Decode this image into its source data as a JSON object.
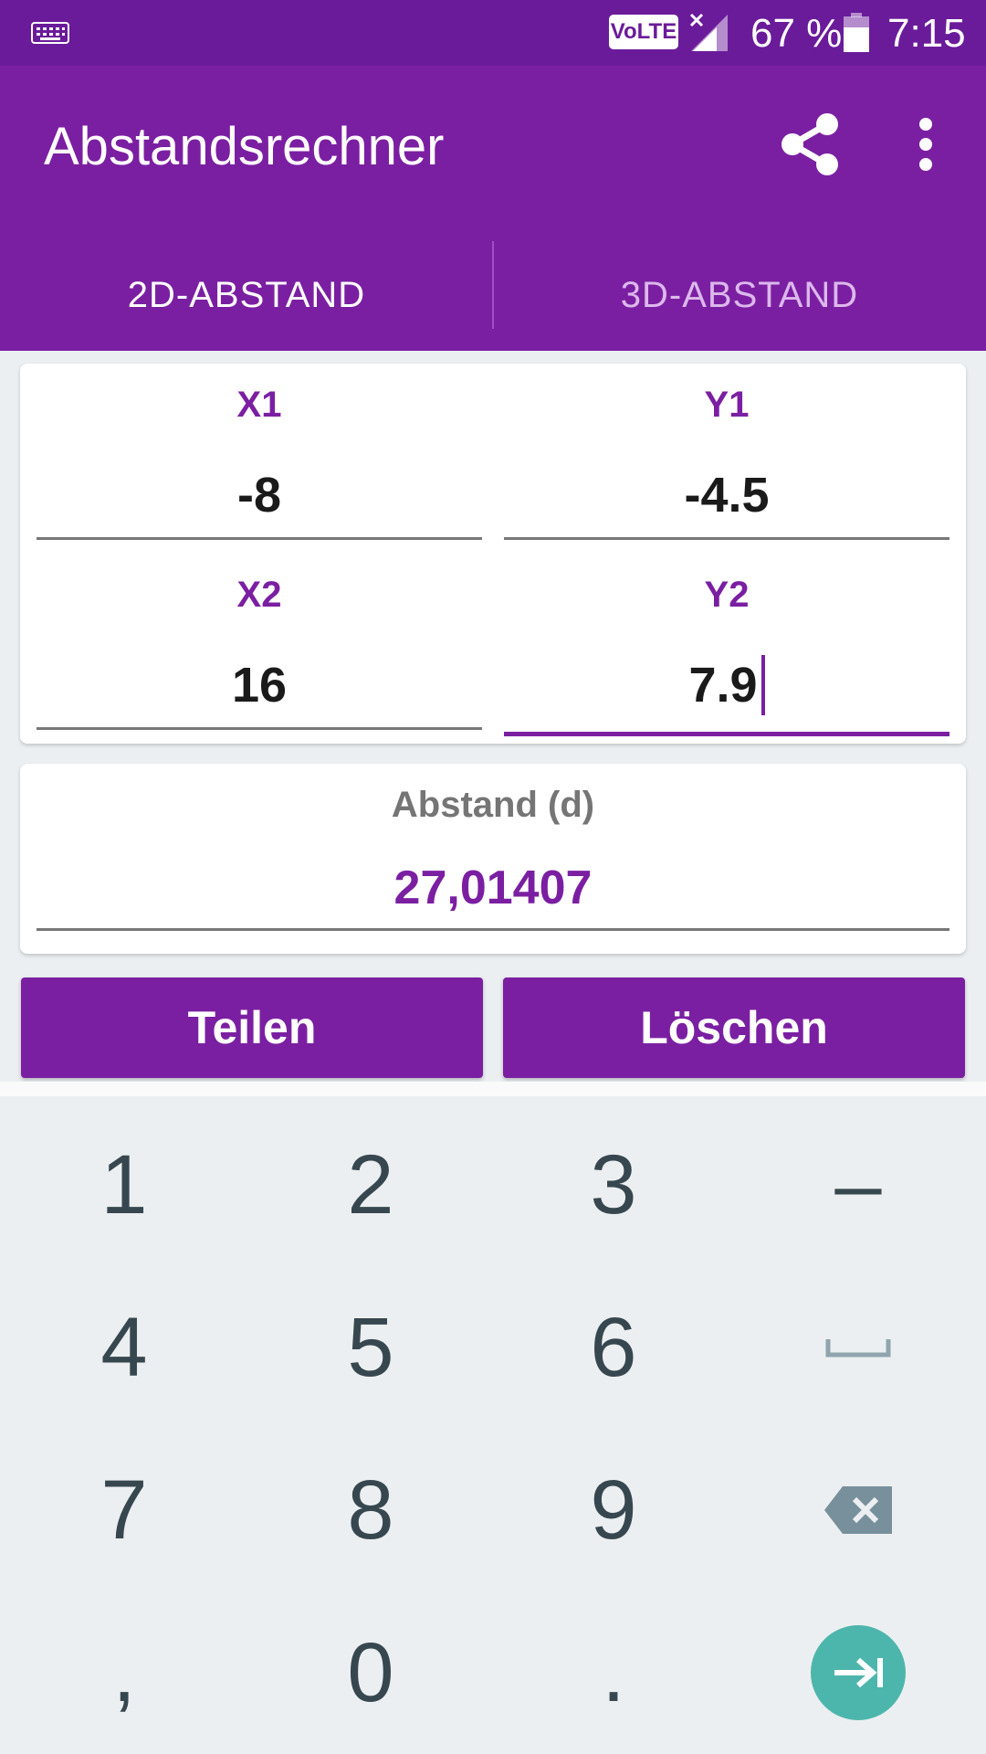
{
  "status_bar": {
    "network_badge": "VoLTE",
    "battery_text": "67 %",
    "time": "7:15"
  },
  "app_bar": {
    "title": "Abstandsrechner",
    "share_icon": "share-icon",
    "more_icon": "more-vert-icon"
  },
  "tabs": [
    {
      "label": "2D-ABSTAND",
      "selected": true
    },
    {
      "label": "3D-ABSTAND",
      "selected": false
    }
  ],
  "inputs": {
    "x1": {
      "label": "X1",
      "value": "-8"
    },
    "y1": {
      "label": "Y1",
      "value": "-4.5"
    },
    "x2": {
      "label": "X2",
      "value": "16"
    },
    "y2": {
      "label": "Y2",
      "value": "7.9"
    }
  },
  "result": {
    "label": "Abstand (d)",
    "value": "27,01407"
  },
  "buttons": {
    "share_label": "Teilen",
    "clear_label": "Löschen"
  },
  "keyboard": {
    "keys": [
      "1",
      "2",
      "3",
      "–",
      "4",
      "5",
      "6",
      "7",
      "8",
      "9",
      ",",
      "0",
      "."
    ],
    "special_icons": [
      "space-icon",
      "backspace-icon",
      "next-field-icon"
    ]
  },
  "colors": {
    "status_bar": "#6a1b9a",
    "primary": "#7b1fa2",
    "tab_inactive": "#dcb8ec",
    "keyboard_bg": "#eceff1",
    "enter_key": "#4db6ac"
  }
}
